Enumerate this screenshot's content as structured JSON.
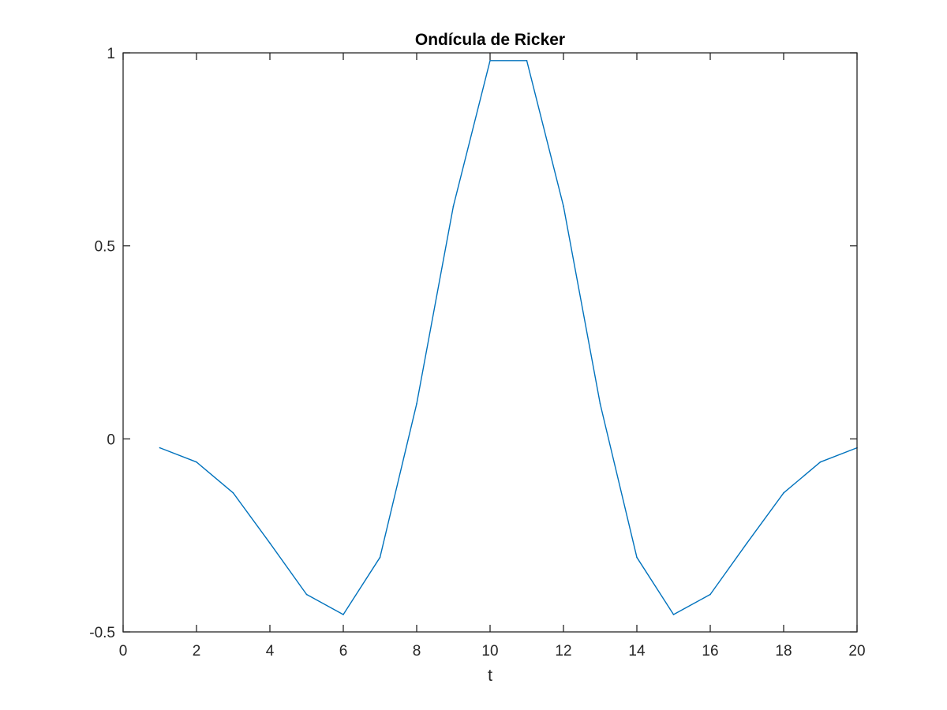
{
  "chart_data": {
    "type": "line",
    "title": "Ondícula de Ricker",
    "xlabel": "t",
    "ylabel": "",
    "xlim": [
      0,
      20
    ],
    "ylim": [
      -0.5,
      1
    ],
    "xticks": [
      "0",
      "2",
      "4",
      "6",
      "8",
      "10",
      "12",
      "14",
      "16",
      "18",
      "20"
    ],
    "yticks": [
      "-0.5",
      "0",
      "0.5",
      "1"
    ],
    "grid": false,
    "box": true,
    "series": [
      {
        "color": "#0072bd",
        "x": [
          1,
          2,
          3,
          4,
          5,
          6,
          7,
          8,
          9,
          10,
          11,
          12,
          13,
          14,
          15,
          16,
          17,
          18,
          19,
          20
        ],
        "values": [
          -0.023,
          -0.06,
          -0.14,
          -0.27,
          -0.403,
          -0.455,
          -0.307,
          0.091,
          0.603,
          0.98,
          0.98,
          0.603,
          0.091,
          -0.307,
          -0.455,
          -0.403,
          -0.27,
          -0.14,
          -0.06,
          -0.023
        ]
      }
    ]
  }
}
